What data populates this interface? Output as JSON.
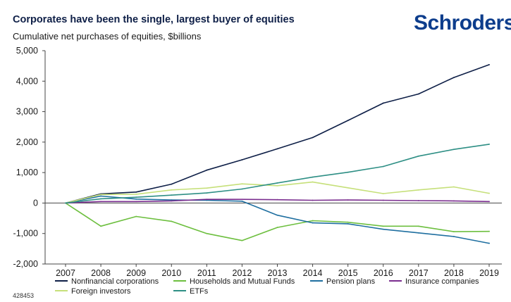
{
  "header": {
    "title": "Corporates have been the single, largest buyer of equities",
    "subtitle": "Cumulative net purchases of equities, $billions",
    "logo": "Schroders"
  },
  "footer": {
    "id": "428453"
  },
  "colors": {
    "title": "#0e1f47",
    "logo": "#0d3d8c",
    "axis": "#333333"
  },
  "chart_data": {
    "type": "line",
    "title": "Corporates have been the single, largest buyer of equities",
    "subtitle": "Cumulative net purchases of equities, $billions",
    "xlabel": "",
    "ylabel": "",
    "x": [
      "2007",
      "2008",
      "2009",
      "2010",
      "2011",
      "2012",
      "2013",
      "2014",
      "2015",
      "2016",
      "2017",
      "2018",
      "2019"
    ],
    "ylim": [
      -2000,
      5000
    ],
    "yticks": [
      -2000,
      -1000,
      0,
      1000,
      2000,
      3000,
      4000,
      5000
    ],
    "ytick_labels": [
      "-2,000",
      "-1,000",
      "0",
      "1,000",
      "2,000",
      "3,000",
      "4,000",
      "5,000"
    ],
    "grid": false,
    "legend_position": "bottom",
    "series": [
      {
        "name": "Nonfinancial corporations",
        "color": "#0e1f47",
        "values": [
          0,
          300,
          360,
          620,
          1080,
          1420,
          1780,
          2150,
          2710,
          3280,
          3580,
          4120,
          4540
        ]
      },
      {
        "name": "Households and Mutual Funds",
        "color": "#6dbf3f",
        "values": [
          0,
          -760,
          -440,
          -600,
          -1000,
          -1230,
          -800,
          -580,
          -630,
          -760,
          -760,
          -940,
          -930
        ]
      },
      {
        "name": "Pension plans",
        "color": "#1f6fa0",
        "values": [
          0,
          230,
          130,
          100,
          90,
          60,
          -400,
          -650,
          -680,
          -860,
          -980,
          -1100,
          -1320
        ]
      },
      {
        "name": "Insurance companies",
        "color": "#7a2d8f",
        "values": [
          0,
          50,
          50,
          70,
          120,
          120,
          110,
          90,
          100,
          90,
          80,
          70,
          50
        ]
      },
      {
        "name": "Foreign investors",
        "color": "#c6e07a",
        "values": [
          0,
          280,
          290,
          430,
          490,
          630,
          570,
          690,
          500,
          310,
          430,
          530,
          320
        ]
      },
      {
        "name": "ETFs",
        "color": "#2e8f85",
        "values": [
          0,
          140,
          190,
          260,
          330,
          460,
          660,
          850,
          1010,
          1200,
          1540,
          1760,
          1930
        ]
      }
    ]
  }
}
